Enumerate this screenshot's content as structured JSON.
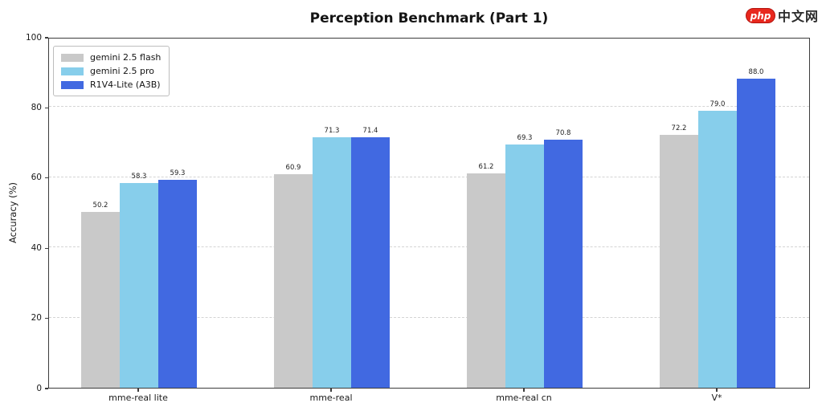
{
  "chart_data": {
    "type": "bar",
    "title": "Perception Benchmark (Part 1)",
    "xlabel": "",
    "ylabel": "Accuracy (%)",
    "categories": [
      "mme-real lite",
      "mme-real",
      "mme-real cn",
      "V*"
    ],
    "series": [
      {
        "name": "gemini 2.5 flash",
        "color": "#c9c9c9",
        "values": [
          50.2,
          60.9,
          61.2,
          72.2
        ]
      },
      {
        "name": "gemini 2.5 pro",
        "color": "#87ceeb",
        "values": [
          58.3,
          71.3,
          69.3,
          79.0
        ]
      },
      {
        "name": "R1V4-Lite (A3B)",
        "color": "#4169e1",
        "values": [
          59.3,
          71.4,
          70.8,
          88.0
        ]
      }
    ],
    "ylim": [
      0,
      100
    ],
    "yticks": [
      0,
      20,
      40,
      60,
      80,
      100
    ],
    "grid": "horizontal dashed at 20/40/60/80",
    "legend_position": "upper left",
    "value_labels": true
  },
  "watermark": {
    "badge_text": "php",
    "site_text": "中文网",
    "badge_color": "#e8281e"
  }
}
